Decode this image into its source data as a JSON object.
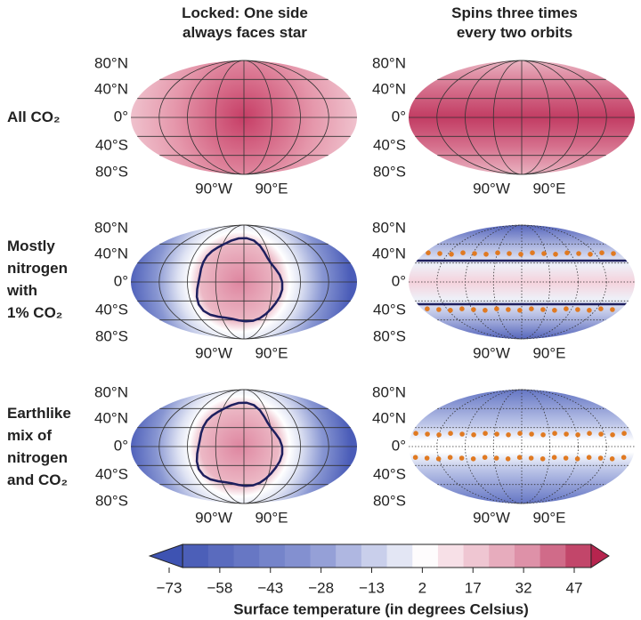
{
  "columns": [
    "Locked: One side\nalways faces star",
    "Spins three times\nevery two orbits"
  ],
  "rows": [
    "All CO₂",
    "Mostly\nnitrogen\nwith\n1% CO₂",
    "Earthlike\nmix of\nnitrogen\nand CO₂"
  ],
  "lat_labels": [
    "80°N",
    "40°N",
    "0°",
    "40°S",
    "80°S"
  ],
  "lon_labels": [
    "90°W",
    "90°E"
  ],
  "colorbar": {
    "label": "Surface temperature (in degrees Celsius)",
    "clim": [
      -69,
      52
    ],
    "ticks": [
      {
        "value": -73,
        "label": "−73"
      },
      {
        "value": -58,
        "label": "−58"
      },
      {
        "value": -43,
        "label": "−43"
      },
      {
        "value": -28,
        "label": "−28"
      },
      {
        "value": -13,
        "label": "−13"
      },
      2,
      17,
      32,
      47
    ]
  }
}
